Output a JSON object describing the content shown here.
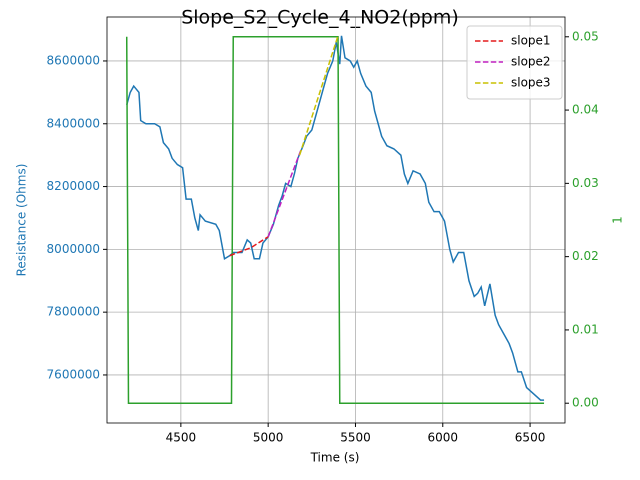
{
  "chart_data": {
    "type": "line",
    "title": "Slope_S2_Cycle_4_NO2(ppm)",
    "xlabel": "Time (s)",
    "ylabel": "Resistance (Ohms)",
    "y2label": "1",
    "xlim": [
      4077,
      6700
    ],
    "xticks": [
      4500,
      5000,
      5500,
      6000,
      6500
    ],
    "ylim": [
      7447000,
      8740000
    ],
    "yticks": [
      7600000,
      7800000,
      8000000,
      8200000,
      8400000,
      8600000
    ],
    "y2lim": [
      -0.0027,
      0.0527
    ],
    "y2ticks": [
      {
        "value": 0,
        "label": "0.00"
      },
      0.01,
      0.02,
      0.03,
      0.04,
      0.05
    ],
    "grid": true,
    "legend": "upper right",
    "y_color": "#1f77b4",
    "y2_color": "#2ca02c",
    "series": [
      {
        "color": "#1f77b4",
        "dash": false,
        "x": [
          4190,
          4210,
          4230,
          4260,
          4270,
          4300,
          4350,
          4380,
          4400,
          4430,
          4450,
          4480,
          4510,
          4530,
          4560,
          4580,
          4600,
          4610,
          4640,
          4700,
          4720,
          4750,
          4780,
          4800,
          4850,
          4880,
          4900,
          4920,
          4950,
          4970,
          5000,
          5030,
          5060,
          5080,
          5100,
          5130,
          5150,
          5170,
          5200,
          5220,
          5250,
          5280,
          5310,
          5340,
          5370,
          5390,
          5410,
          5420,
          5440,
          5470,
          5490,
          5510,
          5530,
          5560,
          5590,
          5610,
          5630,
          5650,
          5680,
          5720,
          5760,
          5780,
          5800,
          5830,
          5870,
          5900,
          5920,
          5950,
          5980,
          6010,
          6040,
          6060,
          6090,
          6120,
          6150,
          6180,
          6200,
          6220,
          6240,
          6270,
          6300,
          6320,
          6350,
          6380,
          6400,
          6430,
          6450,
          6480,
          6520,
          6560,
          6580
        ],
        "values": [
          8460000,
          8500000,
          8520000,
          8500000,
          8410000,
          8400000,
          8400000,
          8390000,
          8340000,
          8320000,
          8290000,
          8270000,
          8260000,
          8160000,
          8160000,
          8100000,
          8060000,
          8110000,
          8090000,
          8080000,
          8060000,
          7970000,
          7980000,
          7990000,
          7990000,
          8030000,
          8020000,
          7970000,
          7970000,
          8020000,
          8040000,
          8080000,
          8140000,
          8170000,
          8210000,
          8200000,
          8240000,
          8290000,
          8330000,
          8360000,
          8380000,
          8440000,
          8500000,
          8560000,
          8600000,
          8660000,
          8590000,
          8680000,
          8610000,
          8600000,
          8580000,
          8600000,
          8560000,
          8520000,
          8500000,
          8440000,
          8400000,
          8360000,
          8330000,
          8320000,
          8300000,
          8240000,
          8210000,
          8250000,
          8240000,
          8210000,
          8150000,
          8120000,
          8120000,
          8090000,
          8000000,
          7960000,
          7990000,
          7990000,
          7900000,
          7850000,
          7860000,
          7880000,
          7820000,
          7890000,
          7790000,
          7760000,
          7730000,
          7700000,
          7670000,
          7610000,
          7610000,
          7560000,
          7540000,
          7520000,
          7520000
        ]
      },
      {
        "color": "#2ca02c",
        "dash": false,
        "axis": "y2",
        "x": [
          4190,
          4200,
          4790,
          4800,
          5400,
          5410,
          6580
        ],
        "values": [
          0.05,
          0,
          0,
          0.05,
          0.05,
          0,
          0
        ]
      },
      {
        "name": "slope1",
        "color": "#e41a1c",
        "dash": true,
        "x": [
          4780,
          4900,
          5000
        ],
        "values": [
          7980000,
          8005000,
          8040000
        ]
      },
      {
        "name": "slope2",
        "color": "#c020c0",
        "dash": true,
        "x": [
          5000,
          5190
        ],
        "values": [
          8040000,
          8320000
        ]
      },
      {
        "name": "slope3",
        "color": "#c8c000",
        "dash": true,
        "x": [
          5180,
          5400
        ],
        "values": [
          8300000,
          8680000
        ]
      }
    ]
  }
}
